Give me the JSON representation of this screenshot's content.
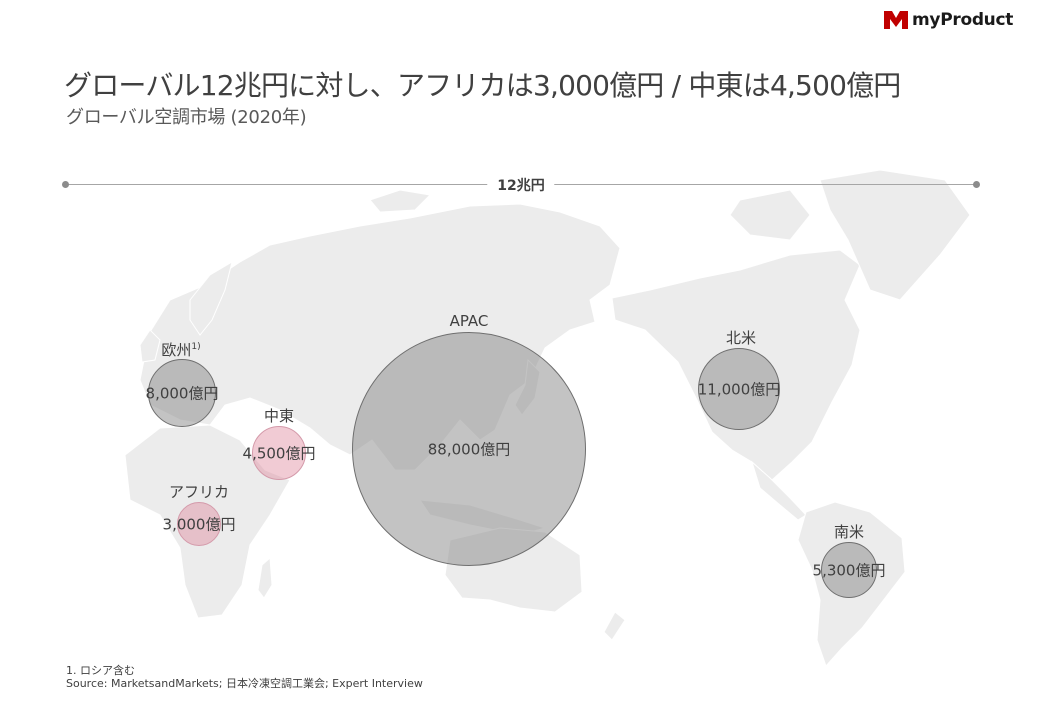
{
  "brand": {
    "name": "myProduct",
    "mark_color": "#c00000"
  },
  "title": "グローバル12兆円に対し、アフリカは3,000億円 / 中東は4,500億円",
  "subtitle": "グローバル空調市場 (2020年)",
  "scale_label": "12兆円",
  "regions": [
    {
      "name": "欧州",
      "footnote_mark": "1)",
      "value": "8,000億円",
      "color": "gray"
    },
    {
      "name": "中東",
      "value": "4,500億円",
      "color": "pink"
    },
    {
      "name": "アフリカ",
      "value": "3,000億円",
      "color": "pink"
    },
    {
      "name": "APAC",
      "value": "88,000億円",
      "color": "gray"
    },
    {
      "name": "北米",
      "value": "11,000億円",
      "color": "gray"
    },
    {
      "name": "南米",
      "value": "5,300億円",
      "color": "gray"
    }
  ],
  "colors": {
    "map_land": "#ececec",
    "bubble_gray": "#919191",
    "bubble_pink": "#e08ca0"
  },
  "footnote": {
    "note": "1. ロシア含む",
    "source": "Source: MarketsandMarkets; 日本冷凍空調工業会;  Expert Interview"
  }
}
